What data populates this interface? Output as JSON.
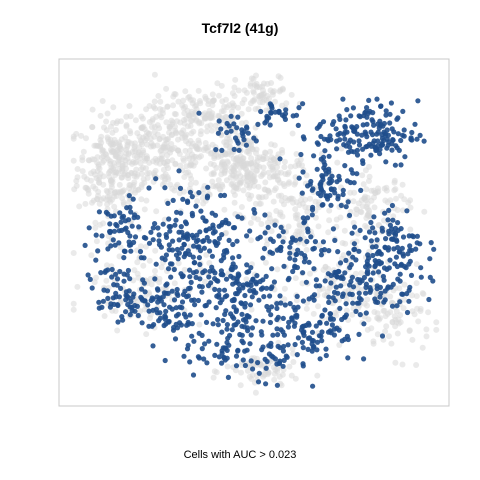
{
  "chart_data": {
    "type": "scatter",
    "title": "Tcf7l2 (41g)",
    "xlabel": "Cells with AUC > 0.023",
    "ylabel": "",
    "axes_shown": false,
    "grid": false,
    "colors": {
      "background_cells": "#d9d9d9",
      "highlighted_cells": "#1f4e8c",
      "frame": "#c8c8c8"
    },
    "series": [
      {
        "role": "below threshold (grey)",
        "clusters": [
          {
            "x": 0.12,
            "y": 0.7,
            "sx": 0.05,
            "sy": 0.08,
            "n": 260
          },
          {
            "x": 0.26,
            "y": 0.75,
            "sx": 0.07,
            "sy": 0.07,
            "n": 220
          },
          {
            "x": 0.46,
            "y": 0.7,
            "sx": 0.07,
            "sy": 0.05,
            "n": 260
          },
          {
            "x": 0.36,
            "y": 0.86,
            "sx": 0.06,
            "sy": 0.04,
            "n": 120
          },
          {
            "x": 0.53,
            "y": 0.92,
            "sx": 0.04,
            "sy": 0.03,
            "n": 60
          },
          {
            "x": 0.6,
            "y": 0.55,
            "sx": 0.08,
            "sy": 0.1,
            "n": 180
          },
          {
            "x": 0.82,
            "y": 0.58,
            "sx": 0.05,
            "sy": 0.05,
            "n": 90
          },
          {
            "x": 0.88,
            "y": 0.25,
            "sx": 0.05,
            "sy": 0.06,
            "n": 80
          },
          {
            "x": 0.52,
            "y": 0.08,
            "sx": 0.05,
            "sy": 0.03,
            "n": 70
          },
          {
            "x": 0.2,
            "y": 0.35,
            "sx": 0.08,
            "sy": 0.07,
            "n": 120
          },
          {
            "x": 0.72,
            "y": 0.3,
            "sx": 0.06,
            "sy": 0.06,
            "n": 90
          }
        ]
      },
      {
        "role": "above threshold (blue)",
        "clusters": [
          {
            "x": 0.8,
            "y": 0.8,
            "sx": 0.07,
            "sy": 0.05,
            "n": 170
          },
          {
            "x": 0.7,
            "y": 0.64,
            "sx": 0.04,
            "sy": 0.05,
            "n": 70
          },
          {
            "x": 0.45,
            "y": 0.8,
            "sx": 0.03,
            "sy": 0.03,
            "n": 30
          },
          {
            "x": 0.56,
            "y": 0.86,
            "sx": 0.03,
            "sy": 0.02,
            "n": 25
          },
          {
            "x": 0.33,
            "y": 0.49,
            "sx": 0.07,
            "sy": 0.08,
            "n": 160
          },
          {
            "x": 0.15,
            "y": 0.5,
            "sx": 0.04,
            "sy": 0.05,
            "n": 60
          },
          {
            "x": 0.12,
            "y": 0.32,
            "sx": 0.04,
            "sy": 0.04,
            "n": 55
          },
          {
            "x": 0.44,
            "y": 0.3,
            "sx": 0.06,
            "sy": 0.08,
            "n": 150
          },
          {
            "x": 0.25,
            "y": 0.27,
            "sx": 0.05,
            "sy": 0.05,
            "n": 80
          },
          {
            "x": 0.65,
            "y": 0.22,
            "sx": 0.06,
            "sy": 0.06,
            "n": 110
          },
          {
            "x": 0.8,
            "y": 0.37,
            "sx": 0.07,
            "sy": 0.06,
            "n": 150
          },
          {
            "x": 0.88,
            "y": 0.48,
            "sx": 0.04,
            "sy": 0.05,
            "n": 60
          },
          {
            "x": 0.6,
            "y": 0.45,
            "sx": 0.05,
            "sy": 0.05,
            "n": 60
          },
          {
            "x": 0.4,
            "y": 0.14,
            "sx": 0.05,
            "sy": 0.03,
            "n": 40
          },
          {
            "x": 0.55,
            "y": 0.12,
            "sx": 0.03,
            "sy": 0.03,
            "n": 25
          }
        ]
      }
    ]
  }
}
